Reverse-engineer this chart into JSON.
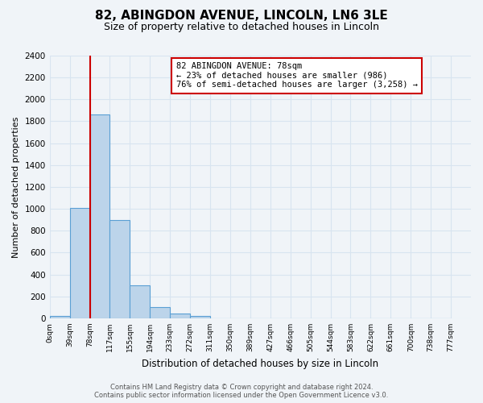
{
  "title": "82, ABINGDON AVENUE, LINCOLN, LN6 3LE",
  "subtitle": "Size of property relative to detached houses in Lincoln",
  "xlabel": "Distribution of detached houses by size in Lincoln",
  "ylabel": "Number of detached properties",
  "bin_labels": [
    "0sqm",
    "39sqm",
    "78sqm",
    "117sqm",
    "155sqm",
    "194sqm",
    "233sqm",
    "272sqm",
    "311sqm",
    "350sqm",
    "389sqm",
    "427sqm",
    "466sqm",
    "505sqm",
    "544sqm",
    "583sqm",
    "622sqm",
    "661sqm",
    "700sqm",
    "738sqm",
    "777sqm"
  ],
  "bar_values": [
    20,
    1010,
    1860,
    900,
    300,
    100,
    45,
    20,
    0,
    0,
    0,
    0,
    0,
    0,
    0,
    0,
    0,
    0,
    0,
    0
  ],
  "bar_color": "#bcd4ea",
  "bar_edge_color": "#5a9fd4",
  "property_line_x": 2,
  "property_line_color": "#cc0000",
  "ylim": [
    0,
    2400
  ],
  "yticks": [
    0,
    200,
    400,
    600,
    800,
    1000,
    1200,
    1400,
    1600,
    1800,
    2000,
    2200,
    2400
  ],
  "annotation_title": "82 ABINGDON AVENUE: 78sqm",
  "annotation_line1": "← 23% of detached houses are smaller (986)",
  "annotation_line2": "76% of semi-detached houses are larger (3,258) →",
  "annotation_box_color": "#ffffff",
  "annotation_box_edge": "#cc0000",
  "footer1": "Contains HM Land Registry data © Crown copyright and database right 2024.",
  "footer2": "Contains public sector information licensed under the Open Government Licence v3.0.",
  "bg_color": "#f0f4f8",
  "grid_color": "#d8e4f0",
  "title_fontsize": 11,
  "subtitle_fontsize": 9
}
